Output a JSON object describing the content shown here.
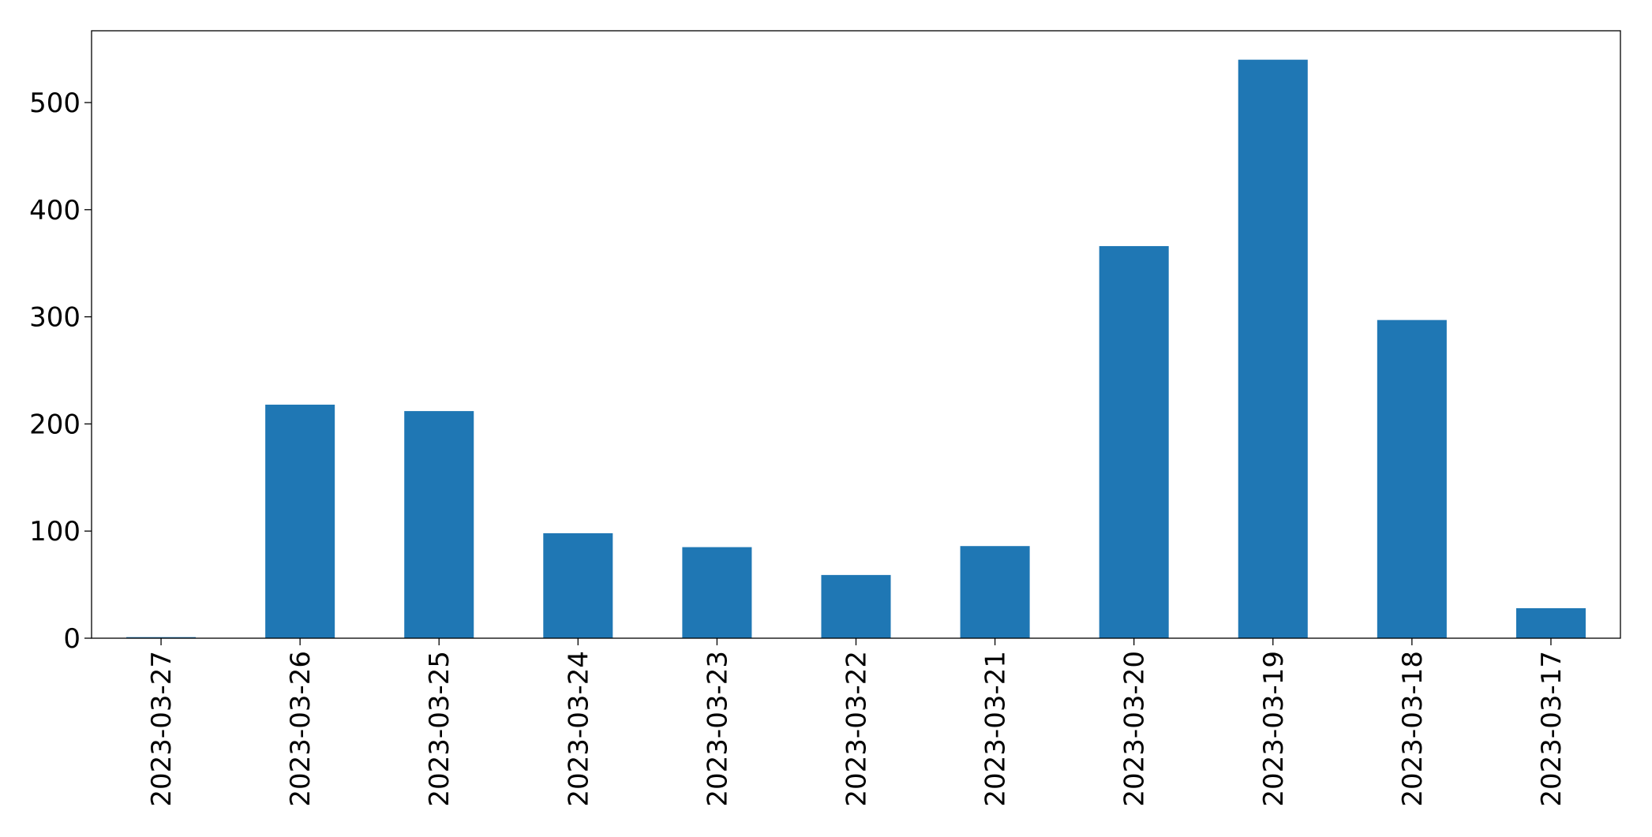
{
  "chart_data": {
    "type": "bar",
    "categories": [
      "2023-03-27",
      "2023-03-26",
      "2023-03-25",
      "2023-03-24",
      "2023-03-23",
      "2023-03-22",
      "2023-03-21",
      "2023-03-20",
      "2023-03-19",
      "2023-03-18",
      "2023-03-17"
    ],
    "values": [
      1,
      218,
      212,
      98,
      85,
      59,
      86,
      366,
      540,
      297,
      28
    ],
    "color": "#1f77b4",
    "ylim": [
      0,
      567
    ],
    "yticks": [
      0,
      100,
      200,
      300,
      400,
      500
    ],
    "grid": false
  }
}
